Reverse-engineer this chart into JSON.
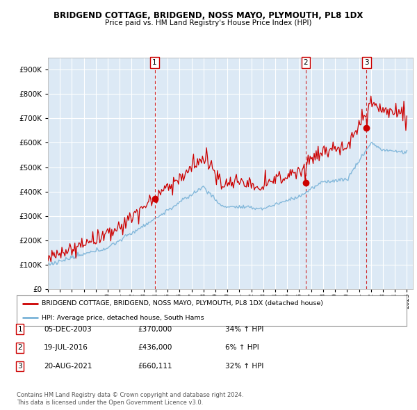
{
  "title": "BRIDGEND COTTAGE, BRIDGEND, NOSS MAYO, PLYMOUTH, PL8 1DX",
  "subtitle": "Price paid vs. HM Land Registry's House Price Index (HPI)",
  "background_color": "#dce9f5",
  "plot_bg_color": "#dce9f5",
  "legend_line1": "BRIDGEND COTTAGE, BRIDGEND, NOSS MAYO, PLYMOUTH, PL8 1DX (detached house)",
  "legend_line2": "HPI: Average price, detached house, South Hams",
  "footer1": "Contains HM Land Registry data © Crown copyright and database right 2024.",
  "footer2": "This data is licensed under the Open Government Licence v3.0.",
  "transactions": [
    {
      "num": 1,
      "date": "05-DEC-2003",
      "price": 370000,
      "hpi_pct": "34% ↑ HPI",
      "year": 2003.92
    },
    {
      "num": 2,
      "date": "19-JUL-2016",
      "price": 436000,
      "hpi_pct": "6% ↑ HPI",
      "year": 2016.54
    },
    {
      "num": 3,
      "date": "20-AUG-2021",
      "price": 660111,
      "hpi_pct": "32% ↑ HPI",
      "year": 2021.63
    }
  ],
  "hpi_color": "#7ab3d8",
  "price_color": "#cc0000",
  "dashed_color": "#cc0000",
  "ylim": [
    0,
    950000
  ],
  "yticks": [
    0,
    100000,
    200000,
    300000,
    400000,
    500000,
    600000,
    700000,
    800000,
    900000
  ],
  "xmin": 1995,
  "xmax": 2025.5,
  "xticks": [
    1995,
    1996,
    1997,
    1998,
    1999,
    2000,
    2001,
    2002,
    2003,
    2004,
    2005,
    2006,
    2007,
    2008,
    2009,
    2010,
    2011,
    2012,
    2013,
    2014,
    2015,
    2016,
    2017,
    2018,
    2019,
    2020,
    2021,
    2022,
    2023,
    2024,
    2025
  ]
}
